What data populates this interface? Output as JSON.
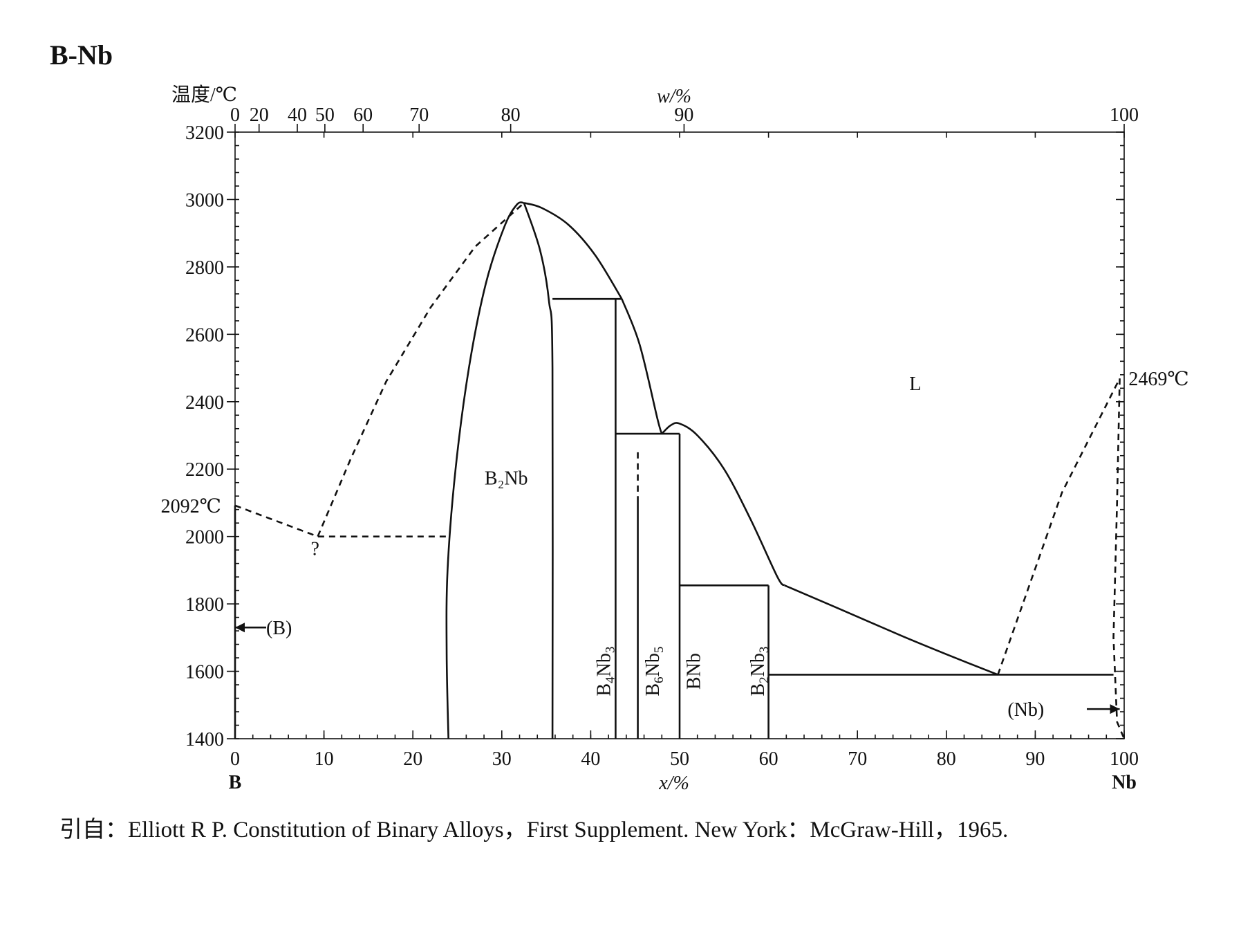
{
  "figure": {
    "title": "B-Nb",
    "citation": "引自：Elliott R P.  Constitution of Binary Alloys，First Supplement.  New York：McGraw-Hill，1965."
  },
  "chart_data": {
    "type": "line",
    "title": "B-Nb",
    "ylabel": "温度/℃",
    "xlabel": "x/%",
    "x2label": "w/%",
    "xlim": [
      0,
      100
    ],
    "ylim": [
      1400,
      3200
    ],
    "grid": false,
    "x_ticks": [
      "0",
      "10",
      "20",
      "30",
      "40",
      "50",
      "60",
      "70",
      "80",
      "90",
      "100"
    ],
    "y_ticks": [
      "1400",
      "1600",
      "1800",
      "2000",
      "2200",
      "2400",
      "2600",
      "2800",
      "3000",
      "3200"
    ],
    "x2_ticks": [
      {
        "label": "0",
        "x": 0
      },
      {
        "label": "20",
        "x": 2.7
      },
      {
        "label": "40",
        "x": 7.0
      },
      {
        "label": "50",
        "x": 10.1
      },
      {
        "label": "60",
        "x": 14.4
      },
      {
        "label": "70",
        "x": 20.7
      },
      {
        "label": "80",
        "x": 31.0
      },
      {
        "label": "90",
        "x": 50.5
      },
      {
        "label": "100",
        "x": 100
      }
    ],
    "end_labels": {
      "left": "B",
      "right": "Nb"
    },
    "series": [
      {
        "style": "solid",
        "points": [
          [
            0.0,
            1400
          ],
          [
            0.0,
            2092
          ]
        ]
      },
      {
        "style": "solid",
        "points": [
          [
            24.0,
            1400
          ],
          [
            23.8,
            1650
          ],
          [
            23.9,
            1900
          ],
          [
            24.8,
            2200
          ],
          [
            26.3,
            2500
          ],
          [
            28.2,
            2750
          ],
          [
            30.3,
            2920
          ],
          [
            31.7,
            2985
          ],
          [
            32.5,
            2990
          ]
        ]
      },
      {
        "style": "solid",
        "points": [
          [
            32.5,
            2990
          ],
          [
            34.3,
            2850
          ],
          [
            35.3,
            2700
          ],
          [
            35.7,
            2500
          ],
          [
            35.7,
            1400
          ]
        ]
      },
      {
        "style": "solid",
        "points": [
          [
            32.5,
            2990
          ],
          [
            34.5,
            2975
          ],
          [
            37.5,
            2925
          ],
          [
            40.5,
            2835
          ],
          [
            43.5,
            2705
          ]
        ]
      },
      {
        "style": "solid",
        "points": [
          [
            35.7,
            2705
          ],
          [
            43.5,
            2705
          ]
        ]
      },
      {
        "style": "solid",
        "points": [
          [
            42.8,
            2705
          ],
          [
            42.8,
            1400
          ]
        ]
      },
      {
        "style": "solid",
        "points": [
          [
            43.5,
            2705
          ],
          [
            45.5,
            2570
          ],
          [
            47.5,
            2350
          ],
          [
            48.0,
            2305
          ]
        ]
      },
      {
        "style": "solid",
        "points": [
          [
            42.8,
            2305
          ],
          [
            50.0,
            2305
          ]
        ]
      },
      {
        "style": "solid",
        "points": [
          [
            45.3,
            2120
          ],
          [
            45.3,
            1400
          ]
        ]
      },
      {
        "style": "dashed",
        "points": [
          [
            45.3,
            2250
          ],
          [
            45.3,
            2120
          ]
        ]
      },
      {
        "style": "solid",
        "points": [
          [
            48.0,
            2305
          ],
          [
            49.0,
            2330
          ],
          [
            50.0,
            2335
          ],
          [
            52.0,
            2300
          ],
          [
            55.0,
            2200
          ],
          [
            58.0,
            2050
          ],
          [
            61.0,
            1880
          ],
          [
            61.8,
            1855
          ]
        ]
      },
      {
        "style": "solid",
        "points": [
          [
            50.0,
            2305
          ],
          [
            50.0,
            1400
          ]
        ]
      },
      {
        "style": "solid",
        "points": [
          [
            50.0,
            1855
          ],
          [
            60.0,
            1855
          ]
        ]
      },
      {
        "style": "solid",
        "points": [
          [
            60.0,
            1855
          ],
          [
            60.0,
            1400
          ]
        ]
      },
      {
        "style": "solid",
        "points": [
          [
            61.8,
            1855
          ],
          [
            68.0,
            1785
          ],
          [
            75.0,
            1705
          ],
          [
            81.0,
            1640
          ],
          [
            85.8,
            1590
          ]
        ]
      },
      {
        "style": "solid",
        "points": [
          [
            60.0,
            1590
          ],
          [
            98.8,
            1590
          ]
        ]
      },
      {
        "style": "dashed",
        "points": [
          [
            0.0,
            2092
          ],
          [
            9.3,
            2000
          ],
          [
            24.0,
            2000
          ]
        ]
      },
      {
        "style": "dashed",
        "points": [
          [
            9.3,
            2000
          ],
          [
            13.0,
            2230
          ],
          [
            17.0,
            2460
          ],
          [
            22.0,
            2680
          ],
          [
            27.0,
            2860
          ],
          [
            32.5,
            2990
          ]
        ]
      },
      {
        "style": "dashed",
        "points": [
          [
            85.8,
            1590
          ],
          [
            89.0,
            1830
          ],
          [
            93.0,
            2130
          ],
          [
            99.5,
            2469
          ]
        ]
      },
      {
        "style": "dashed",
        "points": [
          [
            99.5,
            2469
          ],
          [
            99.2,
            2100
          ],
          [
            98.8,
            1700
          ],
          [
            99.2,
            1450
          ],
          [
            100.0,
            1400
          ]
        ]
      }
    ],
    "annotations": [
      {
        "text": "L",
        "x": 76.5,
        "y": 2455
      },
      {
        "text": "B₂Nb",
        "x": 30.5,
        "y": 2175
      },
      {
        "text": "2092℃",
        "x": -4.0,
        "y": 2092
      },
      {
        "text": "2469℃",
        "x": 100.5,
        "y": 2469
      },
      {
        "text": "?",
        "x": 9.0,
        "y": 1965
      },
      {
        "text": "(B)",
        "x": 3.5,
        "y": 1730
      },
      {
        "text": "(Nb)",
        "x": 91.0,
        "y": 1488
      }
    ],
    "vertical_labels": [
      {
        "main": "B",
        "sub1": "4",
        "mid": "Nb",
        "sub2": "3",
        "x": 41.4,
        "y": 1600
      },
      {
        "main": "B",
        "sub1": "6",
        "mid": "Nb",
        "sub2": "5",
        "x": 46.9,
        "y": 1600
      },
      {
        "main": "BNb",
        "sub1": "",
        "mid": "",
        "sub2": "",
        "x": 51.5,
        "y": 1600
      },
      {
        "main": "B",
        "sub1": "2",
        "mid": "Nb",
        "sub2": "3",
        "x": 58.7,
        "y": 1600
      }
    ],
    "arrows": [
      {
        "from": [
          3.5,
          1730
        ],
        "to": [
          0.0,
          1730
        ]
      },
      {
        "from": [
          95.8,
          1488
        ],
        "to": [
          99.5,
          1488
        ]
      }
    ]
  }
}
